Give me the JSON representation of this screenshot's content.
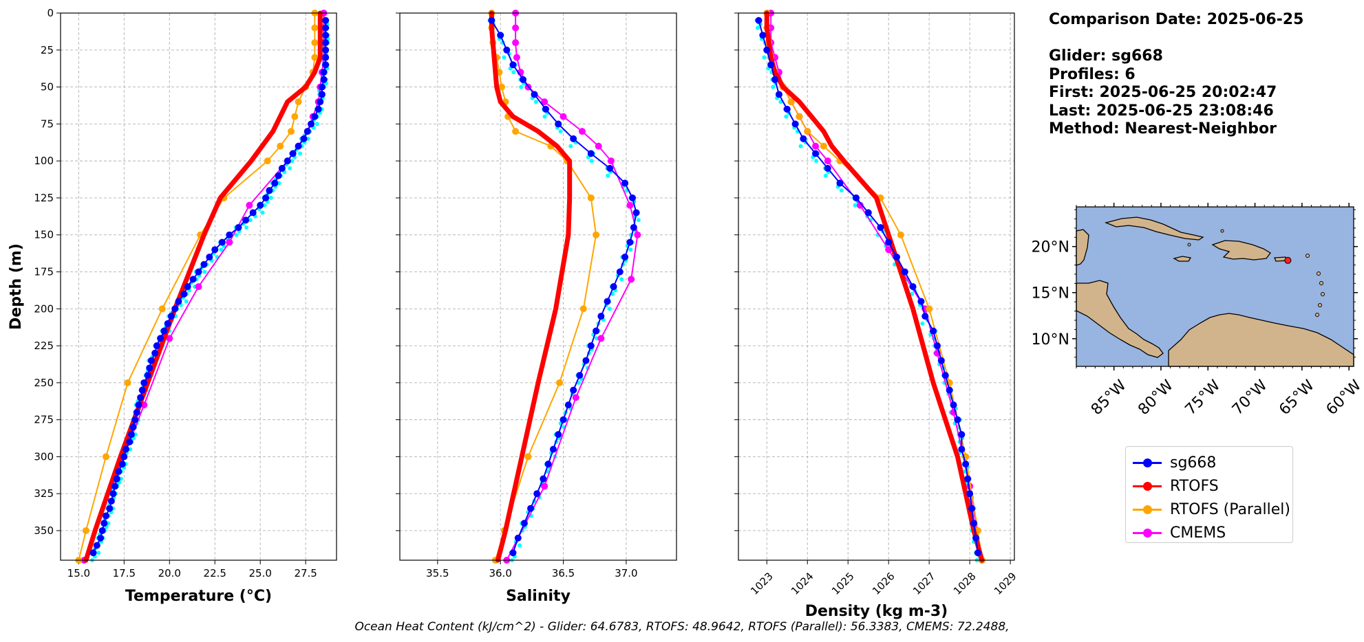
{
  "info": {
    "comparison_date": "Comparison Date: 2025-06-25",
    "glider": "Glider: sg668",
    "profiles": "Profiles: 6",
    "first": "First: 2025-06-25 20:02:47",
    "last": "Last: 2025-06-25 23:08:46",
    "method": "Method: Nearest-Neighbor"
  },
  "ohc_text": "Ocean Heat Content (kJ/cm^2) - Glider: 64.6783,  RTOFS: 48.9642,  RTOFS (Parallel): 56.3383,  CMEMS: 72.2488,",
  "legend": [
    {
      "name": "sg668",
      "color": "#0000ff"
    },
    {
      "name": "RTOFS",
      "color": "#ff0000"
    },
    {
      "name": "RTOFS (Parallel)",
      "color": "#ffa500"
    },
    {
      "name": "CMEMS",
      "color": "#ff00ff"
    }
  ],
  "map": {
    "lat_ticks": [
      "20°N",
      "15°N",
      "10°N"
    ],
    "lon_ticks": [
      "85°W",
      "80°W",
      "75°W",
      "70°W",
      "65°W",
      "60°W"
    ],
    "ocean_color": "#98b4e0",
    "land_color": "#d2b48c",
    "glider_position": {
      "lon": -66.5,
      "lat": 18.5
    }
  },
  "chart_data": [
    {
      "type": "line",
      "title": "",
      "xlabel": "Temperature (°C)",
      "ylabel": "Depth (m)",
      "xlim": [
        14,
        29.2
      ],
      "ylim": [
        370,
        0
      ],
      "grid": true,
      "xticks": [
        "15.0",
        "17.5",
        "20.0",
        "22.5",
        "25.0",
        "27.5"
      ],
      "yticks": [
        "0",
        "25",
        "50",
        "75",
        "100",
        "125",
        "150",
        "175",
        "200",
        "225",
        "250",
        "275",
        "300",
        "325",
        "350"
      ],
      "glider_scatter_color": "#00ffff",
      "series": [
        {
          "name": "sg668",
          "depth": [
            5,
            10,
            15,
            20,
            25,
            30,
            35,
            40,
            45,
            50,
            55,
            60,
            65,
            70,
            75,
            80,
            85,
            90,
            95,
            100,
            105,
            110,
            115,
            120,
            125,
            130,
            135,
            140,
            145,
            150,
            155,
            160,
            165,
            170,
            175,
            180,
            185,
            190,
            195,
            200,
            205,
            210,
            215,
            220,
            225,
            230,
            235,
            240,
            245,
            250,
            255,
            260,
            265,
            270,
            275,
            280,
            285,
            290,
            295,
            300,
            305,
            310,
            315,
            320,
            325,
            330,
            335,
            340,
            345,
            350,
            355,
            360,
            365
          ],
          "values": [
            28.6,
            28.6,
            28.6,
            28.6,
            28.6,
            28.6,
            28.6,
            28.5,
            28.5,
            28.4,
            28.4,
            28.3,
            28.2,
            28.0,
            27.8,
            27.6,
            27.4,
            27.1,
            26.8,
            26.5,
            26.2,
            26.0,
            25.8,
            25.5,
            25.3,
            25.0,
            24.6,
            24.2,
            23.8,
            23.3,
            22.9,
            22.5,
            22.2,
            21.9,
            21.6,
            21.3,
            21.0,
            20.8,
            20.5,
            20.3,
            20.1,
            19.9,
            19.7,
            19.5,
            19.3,
            19.2,
            19.0,
            18.9,
            18.8,
            18.6,
            18.5,
            18.4,
            18.3,
            18.2,
            18.1,
            18.0,
            17.9,
            17.8,
            17.6,
            17.5,
            17.4,
            17.2,
            17.1,
            17.0,
            16.9,
            16.8,
            16.7,
            16.5,
            16.4,
            16.3,
            16.2,
            16.0,
            15.8
          ]
        },
        {
          "name": "RTOFS",
          "depth": [
            0,
            10,
            20,
            30,
            40,
            50,
            60,
            70,
            80,
            90,
            100,
            125,
            150,
            200,
            250,
            300,
            350,
            370
          ],
          "values": [
            28.3,
            28.3,
            28.3,
            28.3,
            28.0,
            27.5,
            26.5,
            26.1,
            25.7,
            25.1,
            24.5,
            22.8,
            21.9,
            20.3,
            18.8,
            17.3,
            15.9,
            15.4
          ]
        },
        {
          "name": "RTOFS (Parallel)",
          "depth": [
            0,
            10,
            20,
            30,
            40,
            50,
            60,
            70,
            80,
            90,
            100,
            125,
            150,
            200,
            250,
            300,
            350,
            370
          ],
          "values": [
            28.0,
            28.0,
            28.0,
            28.0,
            27.9,
            27.5,
            27.1,
            26.9,
            26.7,
            26.1,
            25.4,
            23.0,
            21.7,
            19.6,
            17.7,
            16.5,
            15.4,
            15.0
          ]
        },
        {
          "name": "CMEMS",
          "depth": [
            0,
            10,
            20,
            30,
            40,
            50,
            60,
            70,
            80,
            90,
            100,
            130,
            155,
            185,
            220,
            265,
            315,
            370
          ],
          "values": [
            28.5,
            28.5,
            28.5,
            28.5,
            28.4,
            28.3,
            28.2,
            27.9,
            27.6,
            27.1,
            26.5,
            24.4,
            23.3,
            21.6,
            20.0,
            18.6,
            17.0,
            15.3
          ]
        }
      ]
    },
    {
      "type": "line",
      "title": "",
      "xlabel": "Salinity",
      "ylabel": "",
      "xlim": [
        35.2,
        37.4
      ],
      "ylim": [
        370,
        0
      ],
      "grid": true,
      "xticks": [
        "35.5",
        "36.0",
        "36.5",
        "37.0"
      ],
      "yticks": [],
      "glider_scatter_color": "#00ffff",
      "series": [
        {
          "name": "sg668",
          "depth": [
            5,
            15,
            25,
            35,
            45,
            55,
            65,
            75,
            85,
            95,
            105,
            115,
            125,
            135,
            145,
            155,
            165,
            175,
            185,
            195,
            205,
            215,
            225,
            235,
            245,
            255,
            265,
            275,
            285,
            295,
            305,
            315,
            325,
            335,
            345,
            355,
            365
          ],
          "values": [
            35.93,
            36.0,
            36.05,
            36.1,
            36.18,
            36.27,
            36.36,
            36.46,
            36.58,
            36.72,
            36.87,
            36.99,
            37.05,
            37.08,
            37.06,
            37.03,
            36.99,
            36.95,
            36.9,
            36.85,
            36.8,
            36.76,
            36.72,
            36.68,
            36.63,
            36.58,
            36.54,
            36.5,
            36.46,
            36.42,
            36.38,
            36.34,
            36.29,
            36.24,
            36.19,
            36.14,
            36.1
          ]
        },
        {
          "name": "RTOFS",
          "depth": [
            0,
            10,
            20,
            30,
            40,
            50,
            60,
            70,
            80,
            90,
            100,
            125,
            150,
            200,
            250,
            300,
            350,
            370
          ],
          "values": [
            35.93,
            35.93,
            35.94,
            35.95,
            35.96,
            35.97,
            36.0,
            36.1,
            36.3,
            36.45,
            36.55,
            36.55,
            36.54,
            36.44,
            36.3,
            36.17,
            36.04,
            35.98
          ]
        },
        {
          "name": "RTOFS (Parallel)",
          "depth": [
            0,
            10,
            20,
            30,
            40,
            50,
            60,
            70,
            80,
            90,
            100,
            125,
            150,
            200,
            250,
            300,
            350,
            370
          ],
          "values": [
            35.93,
            35.93,
            35.94,
            35.97,
            35.99,
            36.01,
            36.04,
            36.06,
            36.12,
            36.4,
            36.53,
            36.72,
            36.76,
            36.66,
            36.47,
            36.22,
            36.03,
            35.96
          ]
        },
        {
          "name": "CMEMS",
          "depth": [
            0,
            10,
            20,
            30,
            40,
            50,
            60,
            70,
            80,
            90,
            100,
            130,
            150,
            180,
            220,
            260,
            320,
            370
          ],
          "values": [
            36.12,
            36.12,
            36.12,
            36.13,
            36.16,
            36.22,
            36.35,
            36.5,
            36.65,
            36.78,
            36.88,
            37.03,
            37.09,
            37.04,
            36.8,
            36.6,
            36.35,
            36.05
          ]
        }
      ]
    },
    {
      "type": "line",
      "title": "",
      "xlabel": "Density (kg m-3)",
      "ylabel": "",
      "xlim": [
        1022.3,
        1029.1
      ],
      "ylim": [
        370,
        0
      ],
      "grid": true,
      "xticks": [
        "1023",
        "1024",
        "1025",
        "1026",
        "1027",
        "1028",
        "1029"
      ],
      "yticks": [],
      "glider_scatter_color": "#00ffff",
      "series": [
        {
          "name": "sg668",
          "depth": [
            5,
            15,
            25,
            35,
            45,
            55,
            65,
            75,
            85,
            95,
            105,
            115,
            125,
            135,
            145,
            155,
            165,
            175,
            185,
            195,
            205,
            215,
            225,
            235,
            245,
            255,
            265,
            275,
            285,
            295,
            305,
            315,
            325,
            335,
            345,
            355,
            365
          ],
          "values": [
            1022.8,
            1022.9,
            1023.0,
            1023.1,
            1023.2,
            1023.3,
            1023.5,
            1023.7,
            1023.9,
            1024.2,
            1024.5,
            1024.8,
            1025.2,
            1025.5,
            1025.8,
            1026.0,
            1026.2,
            1026.4,
            1026.6,
            1026.8,
            1026.9,
            1027.1,
            1027.2,
            1027.3,
            1027.4,
            1027.5,
            1027.6,
            1027.7,
            1027.8,
            1027.8,
            1027.9,
            1027.95,
            1028.0,
            1028.05,
            1028.1,
            1028.15,
            1028.2
          ]
        },
        {
          "name": "RTOFS",
          "depth": [
            0,
            10,
            20,
            30,
            40,
            50,
            60,
            70,
            80,
            90,
            100,
            125,
            150,
            200,
            250,
            300,
            350,
            370
          ],
          "values": [
            1023.0,
            1023.0,
            1023.05,
            1023.1,
            1023.2,
            1023.4,
            1023.8,
            1024.1,
            1024.4,
            1024.6,
            1024.9,
            1025.7,
            1026.0,
            1026.6,
            1027.1,
            1027.7,
            1028.1,
            1028.3
          ]
        },
        {
          "name": "RTOFS (Parallel)",
          "depth": [
            0,
            10,
            20,
            30,
            40,
            50,
            60,
            70,
            80,
            90,
            100,
            125,
            150,
            200,
            250,
            300,
            350,
            370
          ],
          "values": [
            1023.0,
            1023.0,
            1023.05,
            1023.1,
            1023.2,
            1023.4,
            1023.6,
            1023.8,
            1024.0,
            1024.4,
            1024.8,
            1025.8,
            1026.3,
            1027.0,
            1027.5,
            1027.9,
            1028.2,
            1028.3
          ]
        },
        {
          "name": "CMEMS",
          "depth": [
            0,
            10,
            20,
            30,
            40,
            50,
            60,
            70,
            80,
            90,
            100,
            130,
            160,
            200,
            230,
            270,
            320,
            370
          ],
          "values": [
            1023.1,
            1023.1,
            1023.1,
            1023.2,
            1023.3,
            1023.4,
            1023.6,
            1023.8,
            1024.0,
            1024.2,
            1024.5,
            1025.3,
            1026.0,
            1026.9,
            1027.2,
            1027.6,
            1028.0,
            1028.3
          ]
        }
      ]
    }
  ]
}
